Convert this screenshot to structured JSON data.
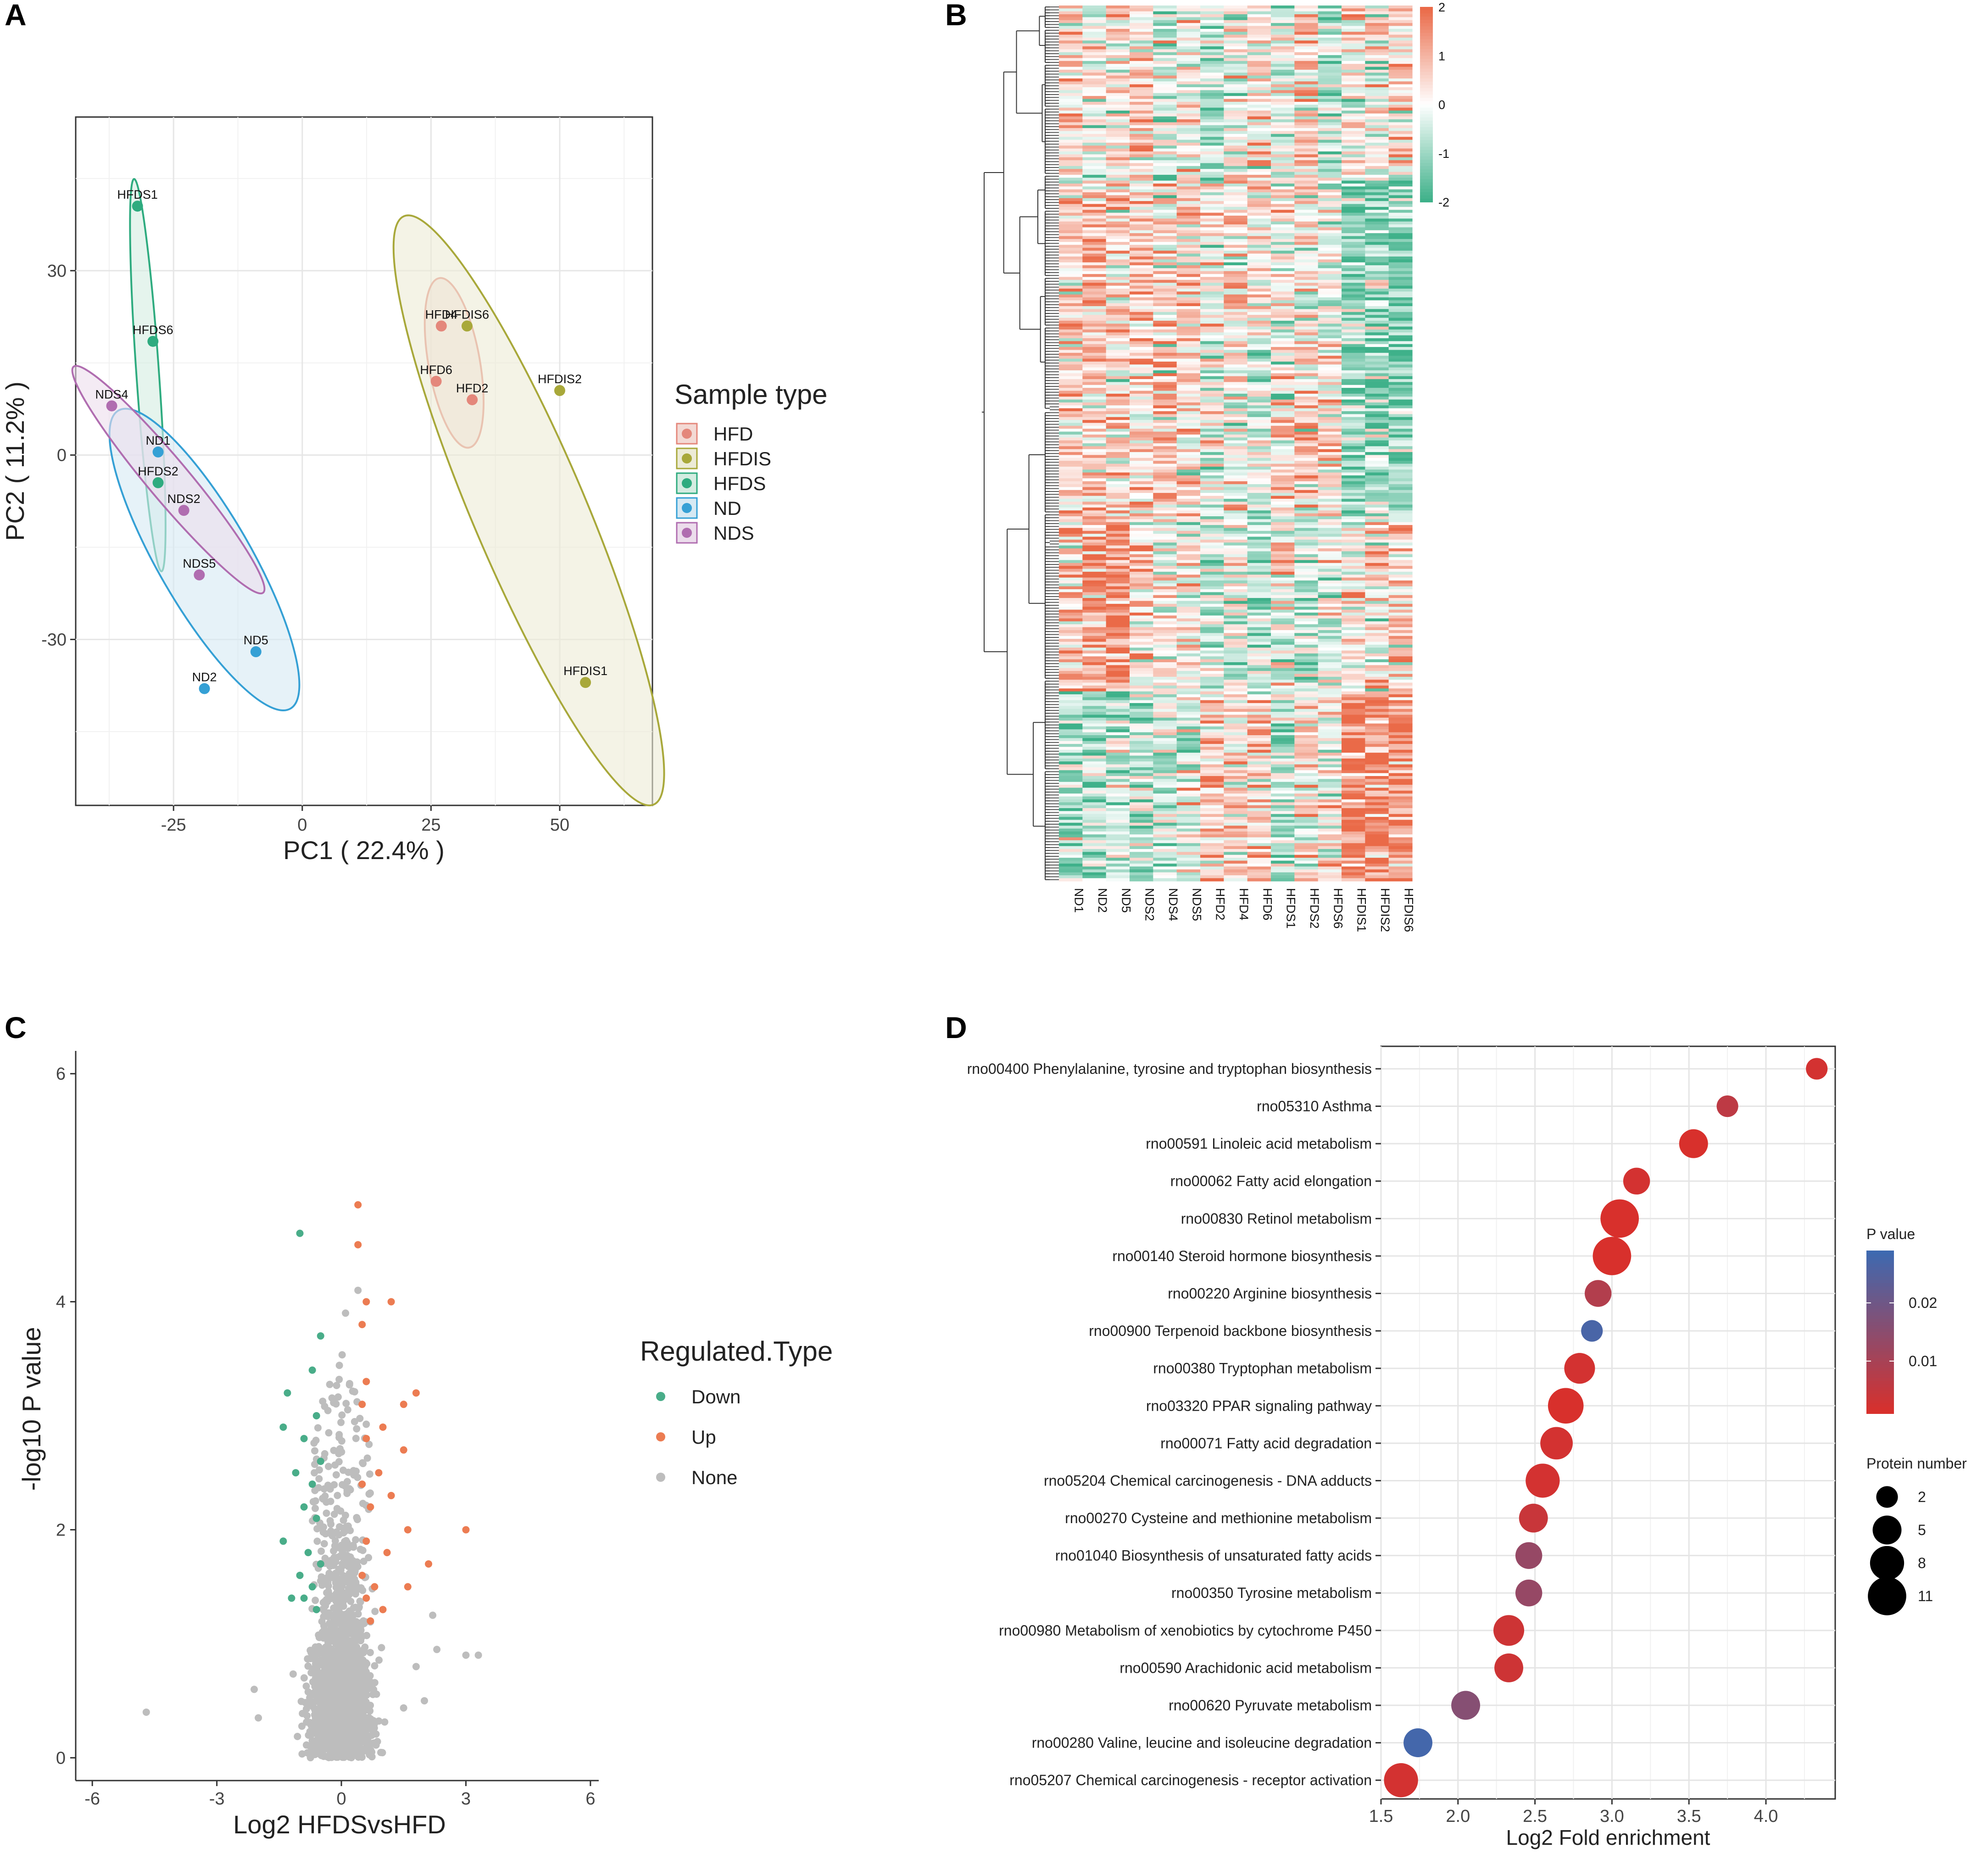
{
  "panels": {
    "A": "A",
    "B": "B",
    "C": "C",
    "D": "D"
  },
  "chart_data": [
    {
      "id": "A",
      "type": "scatter",
      "title": "",
      "xlabel": "PC1 ( 22.4% )",
      "ylabel": "PC2 ( 11.2% )",
      "xlim": [
        -44,
        68
      ],
      "ylim": [
        -57,
        55
      ],
      "xticks": [
        -25,
        0,
        25,
        50
      ],
      "xtick_labels": [
        "-25",
        "0",
        "25",
        "50"
      ],
      "yticks": [
        30,
        0,
        -30
      ],
      "ytick_labels": [
        "30",
        "0",
        "-30"
      ],
      "legend_title": "Sample type",
      "groups": [
        {
          "name": "HFD",
          "color": "#e4877b",
          "fill": "#f3d9d4",
          "points": [
            {
              "label": "HFD4",
              "x": 27,
              "y": 21
            },
            {
              "label": "HFD6",
              "x": 26,
              "y": 12
            },
            {
              "label": "HFD2",
              "x": 33,
              "y": 9
            }
          ],
          "ellipse": {
            "cx": 29.5,
            "cy": 15,
            "rx": 5,
            "ry": 14,
            "angle": -10
          }
        },
        {
          "name": "HFDIS",
          "color": "#a8a83a",
          "fill": "#ecebd6",
          "points": [
            {
              "label": "HFDIS6",
              "x": 32,
              "y": 21
            },
            {
              "label": "HFDIS2",
              "x": 50,
              "y": 10.5
            },
            {
              "label": "HFDIS1",
              "x": 55,
              "y": -37
            }
          ],
          "ellipse": {
            "cx": 44,
            "cy": -9,
            "rx": 11,
            "ry": 52,
            "angle": -23
          }
        },
        {
          "name": "HFDS",
          "color": "#2eab7f",
          "fill": "#d4ece1",
          "points": [
            {
              "label": "HFDS1",
              "x": -32,
              "y": 40.5
            },
            {
              "label": "HFDS6",
              "x": -29,
              "y": 18.5
            },
            {
              "label": "HFDS2",
              "x": -28,
              "y": -4.5
            }
          ],
          "ellipse": {
            "cx": -30,
            "cy": 13,
            "rx": 2.2,
            "ry": 32,
            "angle": -4
          }
        },
        {
          "name": "ND",
          "color": "#35a0d5",
          "fill": "#d6e9f3",
          "points": [
            {
              "label": "ND1",
              "x": -28,
              "y": 0.5
            },
            {
              "label": "ND5",
              "x": -9,
              "y": -32
            },
            {
              "label": "ND2",
              "x": -19,
              "y": -38
            }
          ],
          "ellipse": {
            "cx": -19,
            "cy": -17,
            "rx": 9,
            "ry": 28,
            "angle": -30
          }
        },
        {
          "name": "NDS",
          "color": "#b06db0",
          "fill": "#ecddec",
          "points": [
            {
              "label": "NDS4",
              "x": -37,
              "y": 8
            },
            {
              "label": "NDS2",
              "x": -23,
              "y": -9
            },
            {
              "label": "NDS5",
              "x": -20,
              "y": -19.5
            }
          ],
          "ellipse": {
            "cx": -26,
            "cy": -4,
            "rx": 4,
            "ry": 24,
            "angle": -40
          }
        }
      ]
    },
    {
      "id": "B",
      "type": "heatmap",
      "columns": [
        "ND1",
        "ND2",
        "ND5",
        "NDS2",
        "NDS4",
        "NDS5",
        "HFD2",
        "HFD4",
        "HFD6",
        "HFDS1",
        "HFDS2",
        "HFDS6",
        "HFDIS1",
        "HFDIS2",
        "HFDIS6"
      ],
      "colorbar_ticks": [
        "2",
        "1",
        "0",
        "-1",
        "-2"
      ],
      "range": [
        -2,
        2
      ],
      "colors": {
        "low": "#3fb18a",
        "mid": "#ffffff",
        "high": "#ea6a48"
      }
    },
    {
      "id": "C",
      "type": "scatter",
      "xlabel": "Log2 HFDSvsHFD",
      "ylabel": "-log10 P value",
      "xlim": [
        -6.4,
        6.2
      ],
      "ylim": [
        -0.2,
        6.2
      ],
      "xticks": [
        -6,
        -3,
        0,
        3,
        6
      ],
      "xtick_labels": [
        "-6",
        "-3",
        "0",
        "3",
        "6"
      ],
      "yticks": [
        0,
        2,
        4,
        6
      ],
      "ytick_labels": [
        "0",
        "2",
        "4",
        "6"
      ],
      "legend_title": "Regulated.Type",
      "legend": [
        {
          "name": "Down",
          "color": "#49ad89"
        },
        {
          "name": "Up",
          "color": "#ec7c52"
        },
        {
          "name": "None",
          "color": "#bdbdbd"
        }
      ],
      "highlight_points": {
        "down": [
          [
            -1,
            4.6
          ],
          [
            -0.5,
            3.7
          ],
          [
            -0.7,
            3.4
          ],
          [
            -1.3,
            3.2
          ],
          [
            -0.6,
            3.0
          ],
          [
            -1.4,
            2.9
          ],
          [
            -0.9,
            2.8
          ],
          [
            -0.5,
            2.6
          ],
          [
            -1.1,
            2.5
          ],
          [
            -0.7,
            2.4
          ],
          [
            -0.9,
            2.2
          ],
          [
            -0.6,
            2.1
          ],
          [
            -1.4,
            1.9
          ],
          [
            -0.8,
            1.8
          ],
          [
            -0.5,
            1.7
          ],
          [
            -1.0,
            1.6
          ],
          [
            -0.7,
            1.5
          ],
          [
            -0.9,
            1.4
          ],
          [
            -0.6,
            1.3
          ],
          [
            -1.2,
            1.4
          ]
        ],
        "up": [
          [
            0.4,
            4.85
          ],
          [
            0.4,
            4.5
          ],
          [
            0.6,
            4.0
          ],
          [
            1.2,
            4.0
          ],
          [
            0.5,
            3.8
          ],
          [
            1.8,
            3.2
          ],
          [
            0.6,
            3.3
          ],
          [
            1.5,
            3.1
          ],
          [
            0.5,
            3.1
          ],
          [
            1.0,
            2.9
          ],
          [
            0.6,
            2.8
          ],
          [
            1.5,
            2.7
          ],
          [
            0.9,
            2.5
          ],
          [
            0.5,
            2.4
          ],
          [
            1.2,
            2.3
          ],
          [
            0.7,
            2.2
          ],
          [
            1.6,
            2.0
          ],
          [
            3.0,
            2.0
          ],
          [
            0.6,
            1.9
          ],
          [
            1.1,
            1.8
          ],
          [
            2.1,
            1.7
          ],
          [
            0.5,
            1.6
          ],
          [
            0.8,
            1.5
          ],
          [
            1.6,
            1.5
          ],
          [
            0.6,
            1.4
          ],
          [
            1.0,
            1.3
          ],
          [
            0.7,
            1.2
          ]
        ],
        "none_outliers": [
          [
            -4.7,
            0.4
          ],
          [
            -2.1,
            0.6
          ],
          [
            -2.0,
            0.35
          ],
          [
            2.2,
            1.25
          ],
          [
            2.3,
            0.95
          ],
          [
            3.0,
            0.9
          ],
          [
            3.3,
            0.9
          ],
          [
            1.8,
            0.8
          ],
          [
            2.0,
            0.5
          ],
          [
            0.4,
            4.1
          ],
          [
            0.1,
            3.9
          ]
        ]
      }
    },
    {
      "id": "D",
      "type": "scatter",
      "xlabel": "Log2 Fold enrichment",
      "xlim": [
        1.5,
        4.45
      ],
      "xticks": [
        1.5,
        2.0,
        2.5,
        3.0,
        3.5,
        4.0
      ],
      "xtick_labels": [
        "1.5",
        "2.0",
        "2.5",
        "3.0",
        "3.5",
        "4.0"
      ],
      "pvalue_legend_title": "P value",
      "pvalue_ticks": [
        0.02,
        0.01
      ],
      "pvalue_tick_labels": [
        "0.02",
        "0.01"
      ],
      "pvalue_range": [
        0.001,
        0.029
      ],
      "size_legend_title": "Protein number",
      "size_legend": [
        2,
        5,
        8,
        11
      ],
      "size_legend_labels": [
        "2",
        "5",
        "8",
        "11"
      ],
      "categories": [
        "rno00400 Phenylalanine, tyrosine and tryptophan biosynthesis",
        "rno05310 Asthma",
        "rno00591 Linoleic acid metabolism",
        "rno00062 Fatty acid elongation",
        "rno00830 Retinol metabolism",
        "rno00140 Steroid hormone biosynthesis",
        "rno00220 Arginine biosynthesis",
        "rno00900 Terpenoid backbone biosynthesis",
        "rno00380 Tryptophan metabolism",
        "rno03320 PPAR signaling pathway",
        "rno00071 Fatty acid degradation",
        "rno05204 Chemical carcinogenesis - DNA adducts",
        "rno00270 Cysteine and methionine metabolism",
        "rno01040 Biosynthesis of unsaturated fatty acids",
        "rno00350 Tyrosine metabolism",
        "rno00980 Metabolism of xenobiotics by cytochrome P450",
        "rno00590 Arachidonic acid metabolism",
        "rno00620 Pyruvate metabolism",
        "rno00280 Valine, leucine and isoleucine degradation",
        "rno05207 Chemical carcinogenesis - receptor activation"
      ],
      "x": [
        4.33,
        3.75,
        3.53,
        3.16,
        3.05,
        3.0,
        2.91,
        2.87,
        2.79,
        2.7,
        2.64,
        2.55,
        2.49,
        2.46,
        2.46,
        2.33,
        2.33,
        2.05,
        1.74,
        1.63
      ],
      "protein_number": [
        2,
        2,
        5,
        4,
        11,
        11,
        4,
        2,
        6,
        9,
        7,
        8,
        5,
        4,
        4,
        6,
        5,
        5,
        5,
        8
      ],
      "p_value": [
        0.002,
        0.006,
        0.001,
        0.002,
        0.001,
        0.001,
        0.008,
        0.027,
        0.002,
        0.001,
        0.002,
        0.002,
        0.004,
        0.013,
        0.013,
        0.003,
        0.003,
        0.016,
        0.028,
        0.002
      ]
    }
  ]
}
